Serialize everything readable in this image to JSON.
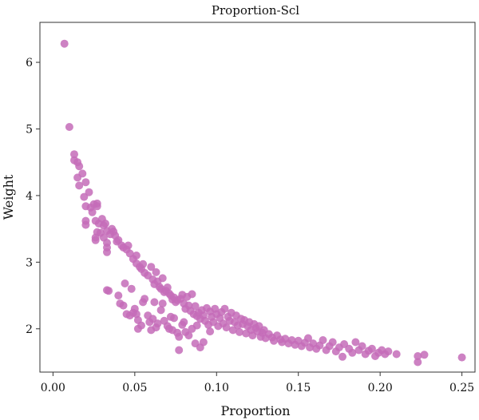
{
  "chart_data": {
    "type": "scatter",
    "title": "Proportion-Scl",
    "xlabel": "Proportion",
    "ylabel": "Weight",
    "xlim": [
      -0.008,
      0.258
    ],
    "ylim": [
      1.35,
      6.6
    ],
    "xticks": [
      0.0,
      0.05,
      0.1,
      0.15,
      0.2,
      0.25
    ],
    "xtick_labels": [
      "0.00",
      "0.05",
      "0.10",
      "0.15",
      "0.20",
      "0.25"
    ],
    "yticks": [
      2,
      3,
      4,
      5,
      6
    ],
    "ytick_labels": [
      "2",
      "3",
      "4",
      "5",
      "6"
    ],
    "grid": false,
    "legend": "none",
    "point_color": "#c46cb8",
    "series": [
      {
        "points": [
          [
            0.007,
            6.28
          ],
          [
            0.01,
            5.03
          ],
          [
            0.013,
            4.62
          ],
          [
            0.013,
            4.53
          ],
          [
            0.015,
            4.5
          ],
          [
            0.016,
            4.44
          ],
          [
            0.015,
            4.27
          ],
          [
            0.016,
            4.15
          ],
          [
            0.018,
            4.33
          ],
          [
            0.02,
            4.2
          ],
          [
            0.022,
            4.05
          ],
          [
            0.019,
            3.98
          ],
          [
            0.02,
            3.84
          ],
          [
            0.023,
            3.82
          ],
          [
            0.024,
            3.75
          ],
          [
            0.025,
            3.87
          ],
          [
            0.027,
            3.88
          ],
          [
            0.027,
            3.84
          ],
          [
            0.02,
            3.62
          ],
          [
            0.02,
            3.56
          ],
          [
            0.026,
            3.62
          ],
          [
            0.028,
            3.58
          ],
          [
            0.03,
            3.65
          ],
          [
            0.027,
            3.45
          ],
          [
            0.026,
            3.37
          ],
          [
            0.026,
            3.33
          ],
          [
            0.029,
            3.44
          ],
          [
            0.031,
            3.55
          ],
          [
            0.032,
            3.58
          ],
          [
            0.033,
            3.47
          ],
          [
            0.031,
            3.37
          ],
          [
            0.033,
            3.29
          ],
          [
            0.033,
            3.22
          ],
          [
            0.033,
            3.15
          ],
          [
            0.035,
            3.42
          ],
          [
            0.036,
            3.5
          ],
          [
            0.037,
            3.46
          ],
          [
            0.038,
            3.4
          ],
          [
            0.039,
            3.31
          ],
          [
            0.04,
            3.33
          ],
          [
            0.042,
            3.25
          ],
          [
            0.043,
            3.22
          ],
          [
            0.045,
            3.19
          ],
          [
            0.046,
            3.25
          ],
          [
            0.047,
            3.13
          ],
          [
            0.049,
            3.05
          ],
          [
            0.051,
            2.98
          ],
          [
            0.051,
            3.1
          ],
          [
            0.053,
            2.93
          ],
          [
            0.054,
            2.9
          ],
          [
            0.055,
            2.97
          ],
          [
            0.056,
            2.84
          ],
          [
            0.058,
            2.8
          ],
          [
            0.06,
            2.93
          ],
          [
            0.061,
            2.74
          ],
          [
            0.062,
            2.67
          ],
          [
            0.063,
            2.85
          ],
          [
            0.064,
            2.71
          ],
          [
            0.065,
            2.63
          ],
          [
            0.066,
            2.6
          ],
          [
            0.067,
            2.76
          ],
          [
            0.068,
            2.55
          ],
          [
            0.069,
            2.57
          ],
          [
            0.07,
            2.62
          ],
          [
            0.071,
            2.53
          ],
          [
            0.072,
            2.5
          ],
          [
            0.073,
            2.44
          ],
          [
            0.074,
            2.47
          ],
          [
            0.075,
            2.4
          ],
          [
            0.076,
            2.43
          ],
          [
            0.078,
            2.45
          ],
          [
            0.079,
            2.51
          ],
          [
            0.08,
            2.38
          ],
          [
            0.081,
            2.3
          ],
          [
            0.082,
            2.48
          ],
          [
            0.083,
            2.35
          ],
          [
            0.084,
            2.27
          ],
          [
            0.085,
            2.52
          ],
          [
            0.086,
            2.22
          ],
          [
            0.087,
            2.34
          ],
          [
            0.088,
            2.19
          ],
          [
            0.089,
            2.24
          ],
          [
            0.09,
            2.15
          ],
          [
            0.091,
            2.28
          ],
          [
            0.092,
            2.2
          ],
          [
            0.093,
            2.12
          ],
          [
            0.094,
            2.31
          ],
          [
            0.095,
            2.06
          ],
          [
            0.096,
            2.26
          ],
          [
            0.097,
            2.18
          ],
          [
            0.098,
            2.1
          ],
          [
            0.099,
            2.3
          ],
          [
            0.1,
            2.22
          ],
          [
            0.101,
            2.04
          ],
          [
            0.102,
            2.16
          ],
          [
            0.103,
            2.25
          ],
          [
            0.104,
            2.08
          ],
          [
            0.105,
            2.3
          ],
          [
            0.106,
            2.02
          ],
          [
            0.107,
            2.18
          ],
          [
            0.108,
            2.12
          ],
          [
            0.109,
            2.24
          ],
          [
            0.11,
            1.98
          ],
          [
            0.111,
            2.1
          ],
          [
            0.112,
            2.2
          ],
          [
            0.113,
            2.05
          ],
          [
            0.114,
            1.95
          ],
          [
            0.115,
            2.15
          ],
          [
            0.116,
            2.07
          ],
          [
            0.117,
            2.13
          ],
          [
            0.118,
            1.93
          ],
          [
            0.119,
            2.04
          ],
          [
            0.12,
            2.1
          ],
          [
            0.121,
            1.98
          ],
          [
            0.122,
            1.9
          ],
          [
            0.123,
            2.07
          ],
          [
            0.124,
            2.01
          ],
          [
            0.125,
            1.96
          ],
          [
            0.126,
            2.04
          ],
          [
            0.127,
            1.88
          ],
          [
            0.128,
            1.94
          ],
          [
            0.129,
            1.98
          ],
          [
            0.13,
            1.86
          ],
          [
            0.132,
            1.92
          ],
          [
            0.134,
            1.87
          ],
          [
            0.135,
            1.82
          ],
          [
            0.137,
            1.9
          ],
          [
            0.139,
            1.84
          ],
          [
            0.14,
            1.8
          ],
          [
            0.142,
            1.85
          ],
          [
            0.144,
            1.78
          ],
          [
            0.146,
            1.83
          ],
          [
            0.148,
            1.76
          ],
          [
            0.15,
            1.82
          ],
          [
            0.152,
            1.74
          ],
          [
            0.154,
            1.79
          ],
          [
            0.156,
            1.86
          ],
          [
            0.157,
            1.72
          ],
          [
            0.159,
            1.78
          ],
          [
            0.161,
            1.7
          ],
          [
            0.163,
            1.75
          ],
          [
            0.165,
            1.83
          ],
          [
            0.167,
            1.68
          ],
          [
            0.169,
            1.74
          ],
          [
            0.171,
            1.8
          ],
          [
            0.173,
            1.66
          ],
          [
            0.175,
            1.72
          ],
          [
            0.177,
            1.58
          ],
          [
            0.178,
            1.77
          ],
          [
            0.181,
            1.7
          ],
          [
            0.183,
            1.64
          ],
          [
            0.185,
            1.8
          ],
          [
            0.187,
            1.68
          ],
          [
            0.189,
            1.74
          ],
          [
            0.191,
            1.62
          ],
          [
            0.193,
            1.67
          ],
          [
            0.195,
            1.7
          ],
          [
            0.197,
            1.59
          ],
          [
            0.199,
            1.64
          ],
          [
            0.201,
            1.68
          ],
          [
            0.203,
            1.62
          ],
          [
            0.205,
            1.66
          ],
          [
            0.21,
            1.62
          ],
          [
            0.223,
            1.59
          ],
          [
            0.223,
            1.5
          ],
          [
            0.227,
            1.61
          ],
          [
            0.25,
            1.57
          ],
          [
            0.033,
            2.58
          ],
          [
            0.034,
            2.57
          ],
          [
            0.04,
            2.5
          ],
          [
            0.041,
            2.38
          ],
          [
            0.043,
            2.35
          ],
          [
            0.045,
            2.22
          ],
          [
            0.047,
            2.2
          ],
          [
            0.049,
            2.24
          ],
          [
            0.05,
            2.3
          ],
          [
            0.051,
            2.22
          ],
          [
            0.052,
            2.13
          ],
          [
            0.054,
            2.05
          ],
          [
            0.055,
            2.4
          ],
          [
            0.056,
            2.45
          ],
          [
            0.058,
            2.2
          ],
          [
            0.059,
            2.1
          ],
          [
            0.061,
            2.15
          ],
          [
            0.063,
            2.02
          ],
          [
            0.064,
            2.08
          ],
          [
            0.066,
            2.28
          ],
          [
            0.067,
            2.38
          ],
          [
            0.068,
            2.12
          ],
          [
            0.07,
            2.04
          ],
          [
            0.071,
            2.0
          ],
          [
            0.073,
            1.98
          ],
          [
            0.074,
            2.16
          ],
          [
            0.076,
            1.94
          ],
          [
            0.077,
            1.88
          ],
          [
            0.077,
            1.68
          ],
          [
            0.079,
            2.06
          ],
          [
            0.081,
            1.95
          ],
          [
            0.083,
            1.9
          ],
          [
            0.085,
            2.0
          ],
          [
            0.087,
            1.78
          ],
          [
            0.09,
            1.72
          ],
          [
            0.092,
            1.8
          ],
          [
            0.052,
            2.0
          ],
          [
            0.06,
            1.98
          ],
          [
            0.048,
            2.6
          ],
          [
            0.044,
            2.68
          ],
          [
            0.062,
            2.4
          ],
          [
            0.072,
            2.18
          ],
          [
            0.08,
            2.1
          ],
          [
            0.088,
            2.05
          ],
          [
            0.096,
            1.96
          ]
        ]
      }
    ]
  }
}
